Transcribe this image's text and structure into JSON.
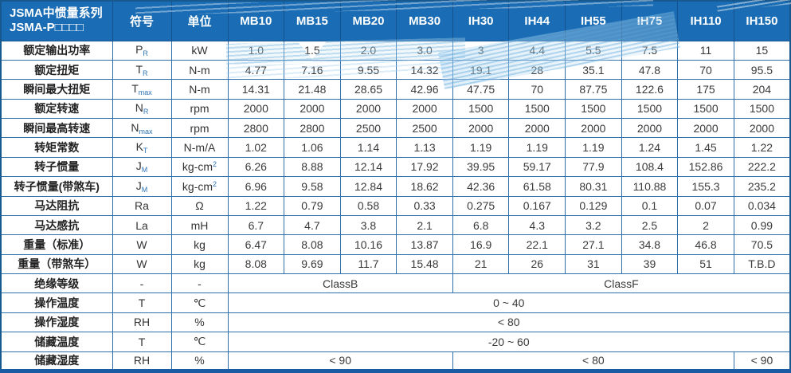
{
  "colors": {
    "header_blue": "#1a6db4",
    "grid_blue": "#2e6fae",
    "outer_blue": "#17588f",
    "subscript_blue": "#2e74b5",
    "wave_blue": "#7db9e1"
  },
  "header": {
    "title_line1": "JSMA中惯量系列",
    "title_line2": "JSMA-P□□□□",
    "symbol_col": "符号",
    "unit_col": "单位",
    "models": [
      "MB10",
      "MB15",
      "MB20",
      "MB30",
      "IH30",
      "IH44",
      "IH55",
      "IH75",
      "IH110",
      "IH150"
    ]
  },
  "rows": [
    {
      "label": "额定输出功率",
      "symbol": "P",
      "symbol_sub": "R",
      "unit": "kW",
      "unit_sup": "",
      "values": [
        "1.0",
        "1.5",
        "2.0",
        "3.0",
        "3",
        "4.4",
        "5.5",
        "7.5",
        "11",
        "15"
      ]
    },
    {
      "label": "额定扭矩",
      "symbol": "T",
      "symbol_sub": "R",
      "unit": "N-m",
      "unit_sup": "",
      "values": [
        "4.77",
        "7.16",
        "9.55",
        "14.32",
        "19.1",
        "28",
        "35.1",
        "47.8",
        "70",
        "95.5"
      ]
    },
    {
      "label": "瞬间最大扭矩",
      "symbol": "T",
      "symbol_sub": "max",
      "unit": "N-m",
      "unit_sup": "",
      "values": [
        "14.31",
        "21.48",
        "28.65",
        "42.96",
        "47.75",
        "70",
        "87.75",
        "122.6",
        "175",
        "204"
      ]
    },
    {
      "label": "额定转速",
      "symbol": "N",
      "symbol_sub": "R",
      "unit": "rpm",
      "unit_sup": "",
      "values": [
        "2000",
        "2000",
        "2000",
        "2000",
        "1500",
        "1500",
        "1500",
        "1500",
        "1500",
        "1500"
      ]
    },
    {
      "label": "瞬间最高转速",
      "symbol": "N",
      "symbol_sub": "max",
      "unit": "rpm",
      "unit_sup": "",
      "values": [
        "2800",
        "2800",
        "2500",
        "2500",
        "2000",
        "2000",
        "2000",
        "2000",
        "2000",
        "2000"
      ]
    },
    {
      "label": "转矩常数",
      "symbol": "K",
      "symbol_sub": "T",
      "unit": "N-m/A",
      "unit_sup": "",
      "values": [
        "1.02",
        "1.06",
        "1.14",
        "1.13",
        "1.19",
        "1.19",
        "1.19",
        "1.24",
        "1.45",
        "1.22"
      ]
    },
    {
      "label": "转子惯量",
      "symbol": "J",
      "symbol_sub": "M",
      "unit": "kg-cm",
      "unit_sup": "2",
      "values": [
        "6.26",
        "8.88",
        "12.14",
        "17.92",
        "39.95",
        "59.17",
        "77.9",
        "108.4",
        "152.86",
        "222.2"
      ]
    },
    {
      "label": "转子惯量(带煞车)",
      "symbol": "J",
      "symbol_sub": "M",
      "unit": "kg-cm",
      "unit_sup": "2",
      "values": [
        "6.96",
        "9.58",
        "12.84",
        "18.62",
        "42.36",
        "61.58",
        "80.31",
        "110.88",
        "155.3",
        "235.2"
      ]
    },
    {
      "label": "马达阻抗",
      "symbol": "Ra",
      "symbol_sub": "",
      "unit": "Ω",
      "unit_sup": "",
      "values": [
        "1.22",
        "0.79",
        "0.58",
        "0.33",
        "0.275",
        "0.167",
        "0.129",
        "0.1",
        "0.07",
        "0.034"
      ]
    },
    {
      "label": "马达感抗",
      "symbol": "La",
      "symbol_sub": "",
      "unit": "mH",
      "unit_sup": "",
      "values": [
        "6.7",
        "4.7",
        "3.8",
        "2.1",
        "6.8",
        "4.3",
        "3.2",
        "2.5",
        "2",
        "0.99"
      ]
    },
    {
      "label": "重量（标准）",
      "symbol": "W",
      "symbol_sub": "",
      "unit": "kg",
      "unit_sup": "",
      "values": [
        "6.47",
        "8.08",
        "10.16",
        "13.87",
        "16.9",
        "22.1",
        "27.1",
        "34.8",
        "46.8",
        "70.5"
      ]
    },
    {
      "label": "重量（带煞车）",
      "symbol": "W",
      "symbol_sub": "",
      "unit": "kg",
      "unit_sup": "",
      "values": [
        "8.08",
        "9.69",
        "11.7",
        "15.48",
        "21",
        "26",
        "31",
        "39",
        "51",
        "T.B.D"
      ]
    }
  ],
  "span_rows": [
    {
      "label": "绝缘等级",
      "symbol": "-",
      "unit": "-",
      "spans": [
        {
          "text": "ClassB",
          "cols": 4
        },
        {
          "text": "ClassF",
          "cols": 6
        }
      ]
    },
    {
      "label": "操作温度",
      "symbol": "T",
      "unit": "℃",
      "spans": [
        {
          "text": "0 ~ 40",
          "cols": 10
        }
      ]
    },
    {
      "label": "操作湿度",
      "symbol": "RH",
      "unit": "%",
      "spans": [
        {
          "text": "< 80",
          "cols": 10
        }
      ]
    },
    {
      "label": "储藏温度",
      "symbol": "T",
      "unit": "℃",
      "spans": [
        {
          "text": "-20 ~ 60",
          "cols": 10
        }
      ]
    },
    {
      "label": "储藏湿度",
      "symbol": "RH",
      "unit": "%",
      "spans": [
        {
          "text": "< 90",
          "cols": 4
        },
        {
          "text": "< 80",
          "cols": 5
        },
        {
          "text": "< 90",
          "cols": 1
        }
      ]
    }
  ]
}
